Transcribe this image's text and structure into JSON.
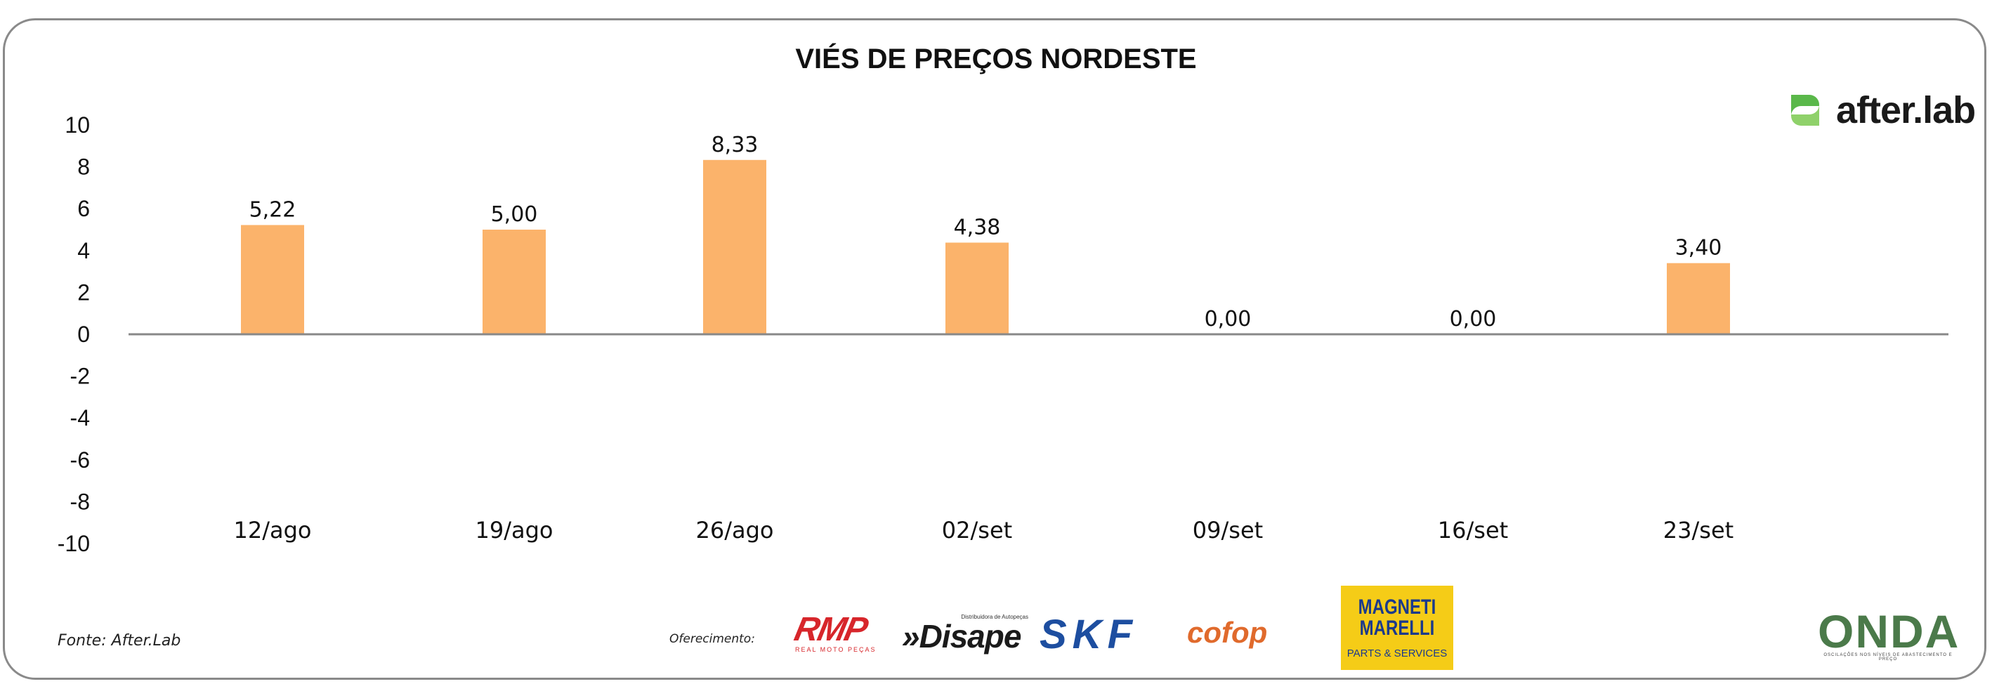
{
  "title": "VIÉS DE PREÇOS NORDESTE",
  "brand": {
    "name": "after.lab",
    "icon": "after-lab-logo-icon",
    "color": "#5ab84a"
  },
  "source": "Fonte: After.Lab",
  "sponsors": {
    "label": "Oferecimento:",
    "rmp": {
      "main": "RMP",
      "sub": "REAL MOTO PEÇAS"
    },
    "disape": {
      "sub": "Distribuidora de Autopeças",
      "main": "»Disape"
    },
    "skf": "SKF",
    "cofop": "cofop",
    "magneti": {
      "main": "MAGNETI MARELLI",
      "sub": "PARTS & SERVICES"
    }
  },
  "onda": {
    "main": "ONDA",
    "sub": "OSCILAÇÕES NOS NÍVEIS DE ABASTECIMENTO E PREÇO"
  },
  "chart_data": {
    "type": "bar",
    "categories": [
      "12/ago",
      "19/ago",
      "26/ago",
      "02/set",
      "09/set",
      "16/set",
      "23/set"
    ],
    "values": [
      5.22,
      5.0,
      8.33,
      4.38,
      0.0,
      0.0,
      3.4
    ],
    "value_labels": [
      "5,22",
      "5,00",
      "8,33",
      "4,38",
      "0,00",
      "0,00",
      "3,40"
    ],
    "title": "VIÉS DE PREÇOS NORDESTE",
    "ylim": [
      -10,
      10
    ],
    "yticks": [
      10,
      8,
      6,
      4,
      2,
      0,
      -2,
      -4,
      -6,
      -8,
      -10
    ],
    "bar_color": "#fbb36b",
    "axis_color": "#888888",
    "grid": false,
    "legend": "none"
  }
}
